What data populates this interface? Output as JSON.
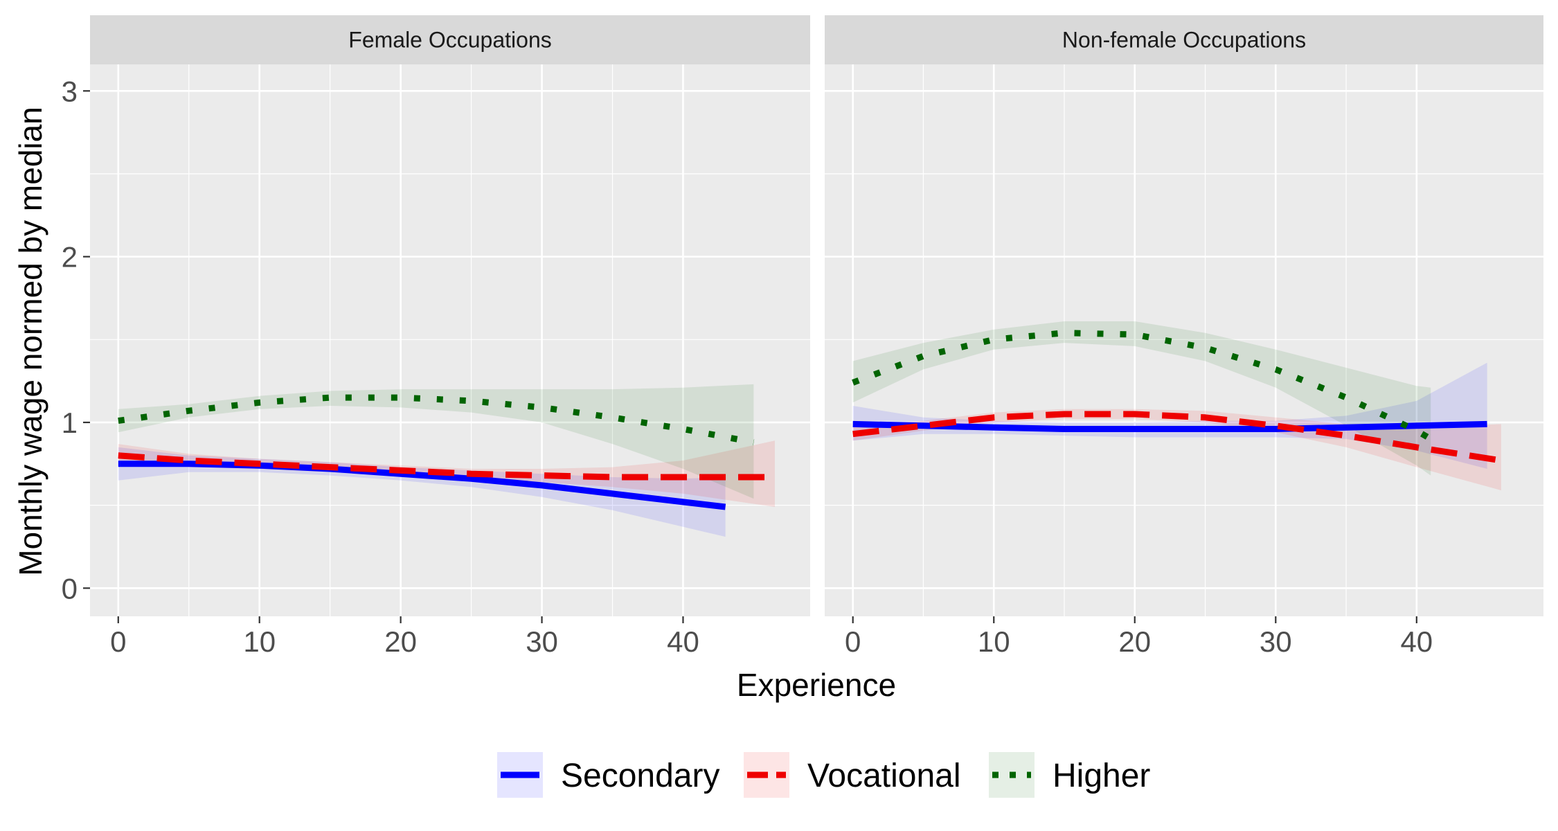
{
  "chart_data": {
    "type": "line",
    "xlabel": "Experience",
    "ylabel": "Monthly wage normed by median",
    "xlim": [
      -2,
      49
    ],
    "ylim": [
      -0.17,
      3.16
    ],
    "x_ticks": [
      0,
      10,
      20,
      30,
      40
    ],
    "y_ticks": [
      0,
      1,
      2,
      3
    ],
    "grid": true,
    "legend_position": "bottom",
    "colors": {
      "panel": "#ebebeb",
      "strip": "#d9d9d9",
      "grid": "#ffffff",
      "Secondary": "#0000ff",
      "Vocational": "#ee0000",
      "Higher": "#006400"
    },
    "legend": [
      {
        "name": "Secondary",
        "color": "#0000ff",
        "dash": "solid"
      },
      {
        "name": "Vocational",
        "color": "#ee0000",
        "dash": "dashed"
      },
      {
        "name": "Higher",
        "color": "#006400",
        "dash": "dotted"
      }
    ],
    "panels": [
      {
        "title": "Female Occupations",
        "series": [
          {
            "name": "Secondary",
            "x": [
              0,
              5,
              10,
              15,
              20,
              25,
              30,
              35,
              40,
              43
            ],
            "y": [
              0.75,
              0.75,
              0.74,
              0.72,
              0.69,
              0.66,
              0.62,
              0.57,
              0.52,
              0.49
            ],
            "lower": [
              0.65,
              0.7,
              0.7,
              0.68,
              0.65,
              0.61,
              0.55,
              0.47,
              0.37,
              0.31
            ],
            "upper": [
              0.85,
              0.8,
              0.78,
              0.76,
              0.73,
              0.71,
              0.69,
              0.67,
              0.66,
              0.67
            ]
          },
          {
            "name": "Vocational",
            "x": [
              0,
              5,
              10,
              15,
              20,
              25,
              30,
              35,
              40,
              46.5
            ],
            "y": [
              0.8,
              0.77,
              0.75,
              0.73,
              0.71,
              0.69,
              0.68,
              0.67,
              0.67,
              0.67
            ],
            "lower": [
              0.74,
              0.73,
              0.72,
              0.7,
              0.68,
              0.66,
              0.64,
              0.61,
              0.57,
              0.49
            ],
            "upper": [
              0.87,
              0.81,
              0.78,
              0.76,
              0.74,
              0.72,
              0.72,
              0.73,
              0.77,
              0.89
            ]
          },
          {
            "name": "Higher",
            "x": [
              0,
              5,
              10,
              15,
              20,
              25,
              30,
              35,
              40,
              45
            ],
            "y": [
              1.01,
              1.07,
              1.12,
              1.15,
              1.15,
              1.13,
              1.09,
              1.03,
              0.96,
              0.88
            ],
            "lower": [
              0.94,
              1.03,
              1.08,
              1.1,
              1.09,
              1.06,
              1.0,
              0.87,
              0.72,
              0.54
            ],
            "upper": [
              1.08,
              1.11,
              1.16,
              1.19,
              1.2,
              1.2,
              1.2,
              1.2,
              1.21,
              1.23
            ]
          }
        ]
      },
      {
        "title": "Non-female Occupations",
        "series": [
          {
            "name": "Secondary",
            "x": [
              0,
              5,
              10,
              15,
              20,
              25,
              30,
              35,
              40,
              45
            ],
            "y": [
              0.99,
              0.98,
              0.97,
              0.96,
              0.96,
              0.96,
              0.96,
              0.97,
              0.98,
              0.99
            ],
            "lower": [
              0.89,
              0.93,
              0.93,
              0.92,
              0.91,
              0.91,
              0.91,
              0.9,
              0.83,
              0.72
            ],
            "upper": [
              1.1,
              1.03,
              1.01,
              1.0,
              1.0,
              1.01,
              1.01,
              1.04,
              1.13,
              1.36
            ]
          },
          {
            "name": "Vocational",
            "x": [
              0,
              5,
              10,
              15,
              20,
              25,
              30,
              35,
              40,
              46
            ],
            "y": [
              0.93,
              0.98,
              1.03,
              1.05,
              1.05,
              1.03,
              0.98,
              0.92,
              0.85,
              0.77
            ],
            "lower": [
              0.89,
              0.95,
              1.0,
              1.02,
              1.02,
              1.0,
              0.94,
              0.85,
              0.73,
              0.59
            ],
            "upper": [
              0.97,
              1.01,
              1.06,
              1.08,
              1.08,
              1.07,
              1.03,
              0.99,
              0.97,
              0.99
            ]
          },
          {
            "name": "Higher",
            "x": [
              0,
              5,
              10,
              15,
              20,
              25,
              30,
              35,
              40,
              41
            ],
            "y": [
              1.24,
              1.4,
              1.5,
              1.54,
              1.53,
              1.45,
              1.32,
              1.15,
              0.95,
              0.9
            ],
            "lower": [
              1.12,
              1.32,
              1.44,
              1.48,
              1.46,
              1.37,
              1.21,
              0.98,
              0.74,
              0.68
            ],
            "upper": [
              1.37,
              1.48,
              1.56,
              1.61,
              1.61,
              1.54,
              1.44,
              1.33,
              1.22,
              1.21
            ]
          }
        ]
      }
    ]
  }
}
